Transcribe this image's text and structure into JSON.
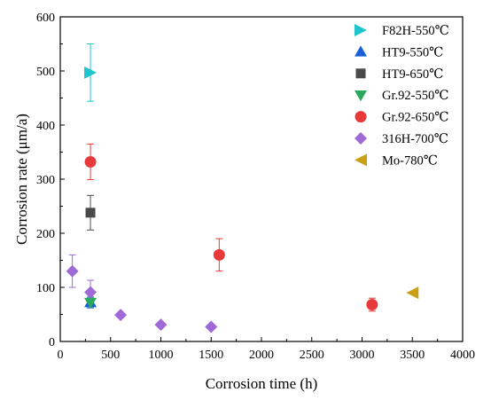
{
  "chart_data": {
    "type": "scatter",
    "title": "",
    "xlabel": "Corrosion time (h)",
    "ylabel": "Corrosion rate (μm/a)",
    "xlim": [
      0,
      4000
    ],
    "ylim": [
      0,
      600
    ],
    "xticks": [
      "0",
      "500",
      "1000",
      "1500",
      "2000",
      "2500",
      "3000",
      "3500",
      "4000"
    ],
    "yticks": [
      "0",
      "100",
      "200",
      "300",
      "400",
      "500",
      "600"
    ],
    "grid": false,
    "legend_position": "top-right",
    "series": [
      {
        "name": "F82H-550℃",
        "marker": "triangle-right",
        "color": "#1fc4cc",
        "points": [
          {
            "x": 300,
            "y": 497,
            "err": 53
          }
        ]
      },
      {
        "name": "HT9-550℃",
        "marker": "triangle-up",
        "color": "#1a5fd6",
        "points": [
          {
            "x": 300,
            "y": 72,
            "err": 10
          }
        ]
      },
      {
        "name": "HT9-650℃",
        "marker": "square",
        "color": "#4a4a4a",
        "points": [
          {
            "x": 300,
            "y": 238,
            "err": 32
          }
        ]
      },
      {
        "name": "Gr.92-550℃",
        "marker": "triangle-down",
        "color": "#2aa85c",
        "points": [
          {
            "x": 300,
            "y": 72,
            "err": 8
          }
        ]
      },
      {
        "name": "Gr.92-650℃",
        "marker": "circle",
        "color": "#e83a3a",
        "points": [
          {
            "x": 300,
            "y": 332,
            "err": 33
          },
          {
            "x": 1580,
            "y": 160,
            "err": 30
          },
          {
            "x": 3100,
            "y": 68,
            "err": 12
          }
        ]
      },
      {
        "name": "316H-700℃",
        "marker": "diamond",
        "color": "#a06ad6",
        "points": [
          {
            "x": 120,
            "y": 130,
            "err": 30
          },
          {
            "x": 300,
            "y": 91,
            "err": 22
          },
          {
            "x": 600,
            "y": 49,
            "err": 0
          },
          {
            "x": 1000,
            "y": 31,
            "err": 0
          },
          {
            "x": 1500,
            "y": 27,
            "err": 0
          }
        ]
      },
      {
        "name": "Mo-780℃",
        "marker": "triangle-left",
        "color": "#c9a018",
        "points": [
          {
            "x": 3500,
            "y": 90,
            "err": 0
          }
        ]
      }
    ]
  }
}
